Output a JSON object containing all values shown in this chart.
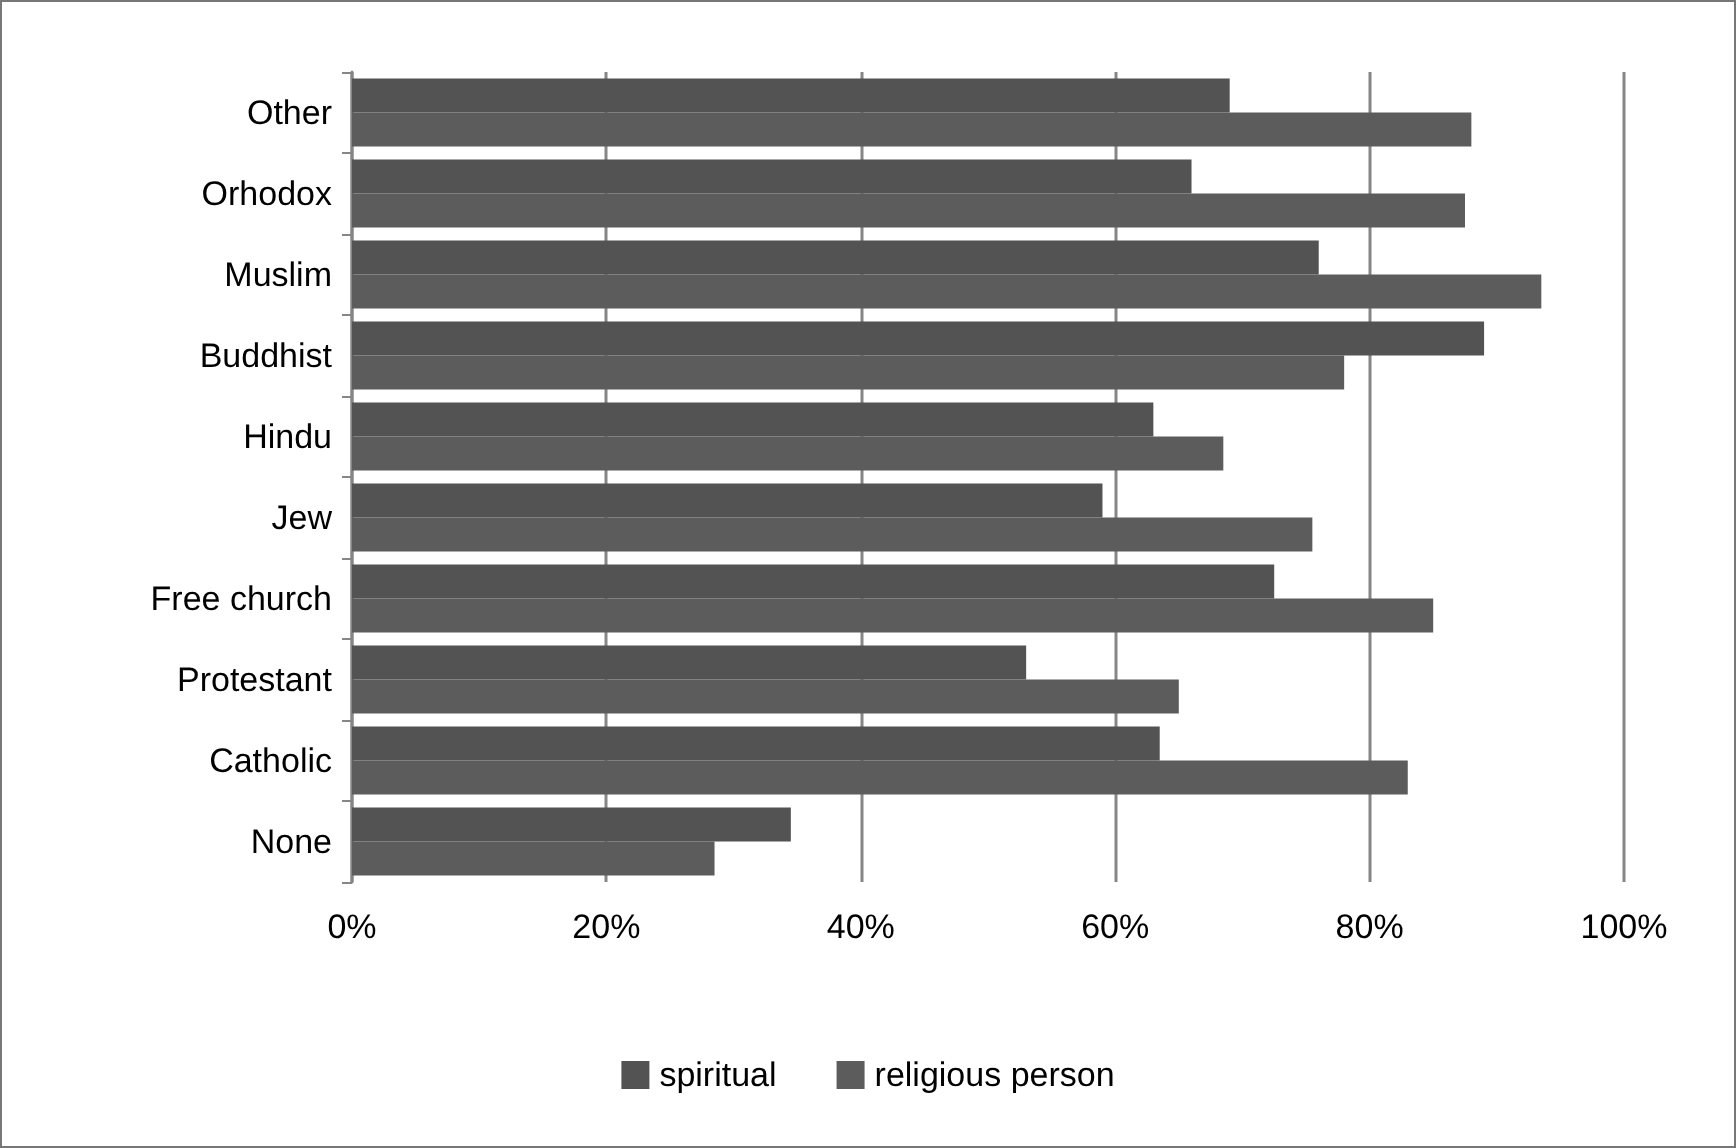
{
  "chart_data": {
    "type": "bar",
    "orientation": "horizontal",
    "categories": [
      "Other",
      "Orhodox",
      "Muslim",
      "Buddhist",
      "Hindu",
      "Jew",
      "Free church",
      "Protestant",
      "Catholic",
      "None"
    ],
    "series": [
      {
        "name": "spiritual",
        "color": "#535353",
        "values": [
          69,
          66,
          76,
          89,
          63,
          59,
          72.5,
          53,
          63.5,
          34.5
        ]
      },
      {
        "name": "religious person",
        "color": "#5c5c5c",
        "values": [
          88,
          87.5,
          93.5,
          78,
          68.5,
          75.5,
          85,
          65,
          83,
          28.5
        ]
      }
    ],
    "xlim": [
      0,
      100
    ],
    "xticks": [
      {
        "value": 0,
        "label": "0%"
      },
      {
        "value": 20,
        "label": "20%"
      },
      {
        "value": 40,
        "label": "40%"
      },
      {
        "value": 60,
        "label": "60%"
      },
      {
        "value": 80,
        "label": "80%"
      },
      {
        "value": 100,
        "label": "100%"
      }
    ],
    "grid": "x",
    "legend": "bottom"
  }
}
